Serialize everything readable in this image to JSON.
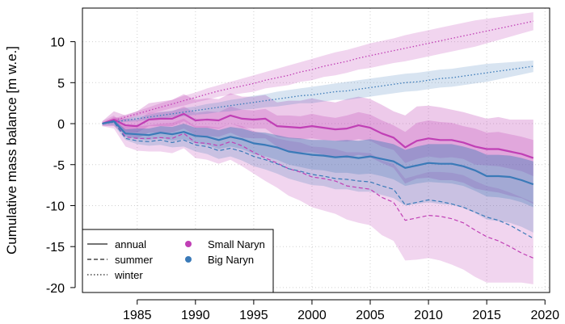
{
  "chart_data": {
    "type": "line",
    "title": "",
    "xlabel": "",
    "ylabel": "Cumulative mass balance [m w.e.]",
    "xlim": [
      1980.3,
      2020.4
    ],
    "ylim": [
      -20.6,
      14.1
    ],
    "xticks": [
      1985,
      1990,
      1995,
      2000,
      2005,
      2010,
      2015,
      2020
    ],
    "yticks": [
      -20,
      -15,
      -10,
      -5,
      0,
      5,
      10
    ],
    "x": [
      1982,
      1983,
      1984,
      1985,
      1986,
      1987,
      1988,
      1989,
      1990,
      1991,
      1992,
      1993,
      1994,
      1995,
      1996,
      1997,
      1998,
      1999,
      2000,
      2001,
      2002,
      2003,
      2004,
      2005,
      2006,
      2007,
      2008,
      2009,
      2010,
      2011,
      2012,
      2013,
      2014,
      2015,
      2016,
      2017,
      2018,
      2019
    ],
    "series": [
      {
        "name": "Small Naryn annual",
        "glacier": "Small Naryn",
        "season": "annual",
        "color": "#c03fb5",
        "values": [
          0.0,
          0.5,
          -0.2,
          -0.3,
          0.5,
          0.6,
          0.6,
          1.2,
          0.4,
          0.5,
          0.4,
          1.0,
          0.6,
          0.5,
          0.6,
          -0.3,
          -0.4,
          -0.5,
          -0.3,
          -0.5,
          -0.7,
          -0.6,
          -0.2,
          -0.5,
          -1.2,
          -1.7,
          -2.9,
          -2.1,
          -1.8,
          -2.0,
          -2.0,
          -2.3,
          -2.8,
          -3.1,
          -3.1,
          -3.4,
          -3.7,
          -4.2
        ],
        "band_outer": [
          0.3,
          1.5,
          1.0,
          1.5,
          2.5,
          2.7,
          2.9,
          3.6,
          2.9,
          3.1,
          3.0,
          3.7,
          3.3,
          3.3,
          3.5,
          2.6,
          2.8,
          2.8,
          3.1,
          2.8,
          2.6,
          3.0,
          3.3,
          3.0,
          2.3,
          1.5,
          1.0,
          2.1,
          2.2,
          2.0,
          1.7,
          1.4,
          1.0,
          0.6,
          0.8,
          0.5,
          0.5,
          0.5
        ],
        "band_inner": [
          0.1,
          0.8,
          0.6,
          0.5,
          1.3,
          1.4,
          1.5,
          2.1,
          1.3,
          1.5,
          1.4,
          2.1,
          1.7,
          1.6,
          1.8,
          1.0,
          1.0,
          0.9,
          1.2,
          0.9,
          0.7,
          1.0,
          1.4,
          1.1,
          0.4,
          -0.2,
          -1.0,
          0.1,
          0.4,
          0.2,
          0.1,
          -0.3,
          -0.6,
          -1.1,
          -1.0,
          -1.3,
          -1.6,
          -2.0
        ],
        "band_inner_low": [
          -0.1,
          0.2,
          -1.0,
          -1.1,
          -0.3,
          -0.3,
          -0.3,
          0.3,
          -0.5,
          -0.5,
          -0.6,
          0.0,
          -0.5,
          -0.6,
          -0.6,
          -1.6,
          -1.8,
          -1.9,
          -1.8,
          -2.0,
          -2.1,
          -2.2,
          -1.9,
          -2.1,
          -2.8,
          -3.2,
          -4.8,
          -4.3,
          -4.0,
          -4.2,
          -4.1,
          -4.3,
          -5.0,
          -5.1,
          -5.2,
          -5.5,
          -5.8,
          -6.4
        ],
        "band_outer_low": [
          -0.3,
          -0.3,
          -1.4,
          -1.8,
          -1.1,
          -1.1,
          -1.1,
          -0.6,
          -1.4,
          -1.5,
          -1.6,
          -1.1,
          -1.7,
          -1.8,
          -1.8,
          -2.8,
          -3.3,
          -3.5,
          -3.5,
          -3.8,
          -4.0,
          -4.2,
          -3.8,
          -4.1,
          -4.8,
          -5.4,
          -7.3,
          -6.7,
          -6.6,
          -6.9,
          -6.9,
          -7.2,
          -7.9,
          -8.2,
          -8.4,
          -8.8,
          -9.1,
          -9.8
        ]
      },
      {
        "name": "Small Naryn summer",
        "glacier": "Small Naryn",
        "season": "summer",
        "color": "#c03fb5",
        "values": [
          0.0,
          0.2,
          -1.6,
          -1.8,
          -1.8,
          -1.7,
          -1.8,
          -1.2,
          -2.3,
          -2.4,
          -2.7,
          -2.2,
          -2.7,
          -3.5,
          -4.2,
          -4.8,
          -5.5,
          -5.9,
          -6.5,
          -6.7,
          -7.0,
          -7.6,
          -7.8,
          -8.0,
          -9.0,
          -9.6,
          -11.8,
          -11.5,
          -11.2,
          -11.3,
          -11.6,
          -12.1,
          -13.0,
          -13.8,
          -14.3,
          -15.0,
          -15.8,
          -16.4
        ],
        "band_outer": [
          0.3,
          1.0,
          -0.4,
          -0.3,
          -0.2,
          0.0,
          0.1,
          0.6,
          -0.3,
          -0.3,
          -0.5,
          0.0,
          -0.3,
          -0.9,
          -1.3,
          -1.8,
          -2.1,
          -2.3,
          -2.8,
          -2.9,
          -3.1,
          -3.5,
          -3.5,
          -3.6,
          -4.5,
          -4.9,
          -6.7,
          -6.3,
          -5.9,
          -5.9,
          -6.0,
          -6.3,
          -7.0,
          -7.6,
          -7.9,
          -8.4,
          -9.0,
          -9.6
        ],
        "band_outer_low": [
          -0.3,
          -0.6,
          -2.8,
          -3.3,
          -3.4,
          -3.4,
          -3.6,
          -3.0,
          -4.2,
          -4.4,
          -4.9,
          -4.4,
          -5.2,
          -6.1,
          -7.0,
          -7.8,
          -8.8,
          -9.4,
          -10.2,
          -10.6,
          -11.0,
          -11.7,
          -12.1,
          -12.4,
          -13.6,
          -14.3,
          -16.7,
          -16.6,
          -16.4,
          -16.7,
          -17.2,
          -17.8,
          -18.7,
          -19.4,
          -19.4,
          -19.4,
          -19.4,
          -19.6
        ]
      },
      {
        "name": "Small Naryn winter",
        "glacier": "Small Naryn",
        "season": "winter",
        "color": "#c03fb5",
        "values": [
          0.0,
          0.4,
          0.8,
          1.2,
          1.6,
          2.0,
          2.4,
          2.8,
          3.2,
          3.6,
          4.0,
          4.3,
          4.6,
          4.9,
          5.3,
          5.6,
          5.9,
          6.3,
          6.6,
          7.0,
          7.3,
          7.6,
          8.0,
          8.3,
          8.6,
          8.9,
          9.2,
          9.5,
          9.8,
          10.1,
          10.4,
          10.7,
          11.0,
          11.3,
          11.6,
          11.9,
          12.2,
          12.5
        ],
        "band_outer": [
          0.1,
          0.6,
          1.1,
          1.5,
          2.0,
          2.5,
          2.9,
          3.4,
          3.8,
          4.3,
          4.7,
          5.1,
          5.5,
          5.9,
          6.3,
          6.7,
          7.1,
          7.5,
          7.9,
          8.3,
          8.7,
          9.0,
          9.4,
          9.8,
          10.1,
          10.4,
          10.8,
          11.1,
          11.4,
          11.7,
          12.0,
          12.3,
          12.6,
          12.8,
          13.0,
          13.2,
          13.4,
          13.6
        ],
        "band_outer_low": [
          -0.1,
          0.2,
          0.5,
          0.9,
          1.2,
          1.5,
          1.9,
          2.2,
          2.6,
          2.9,
          3.3,
          3.5,
          3.7,
          3.9,
          4.3,
          4.5,
          4.7,
          5.1,
          5.3,
          5.7,
          5.9,
          6.2,
          6.6,
          6.8,
          7.1,
          7.4,
          7.6,
          7.9,
          8.2,
          8.5,
          8.8,
          9.1,
          9.4,
          9.8,
          10.2,
          10.6,
          11.0,
          11.4
        ]
      },
      {
        "name": "Big Naryn annual",
        "glacier": "Big Naryn",
        "season": "annual",
        "color": "#3a7ab8",
        "values": [
          0.0,
          0.3,
          -1.2,
          -1.3,
          -1.4,
          -1.1,
          -1.3,
          -1.0,
          -1.5,
          -1.6,
          -2.0,
          -1.6,
          -1.9,
          -2.4,
          -2.6,
          -2.9,
          -3.4,
          -3.6,
          -3.8,
          -3.9,
          -4.1,
          -4.0,
          -4.2,
          -4.0,
          -4.3,
          -4.6,
          -5.4,
          -5.1,
          -4.8,
          -4.9,
          -4.9,
          -5.2,
          -5.7,
          -6.4,
          -6.4,
          -6.5,
          -6.9,
          -7.4
        ],
        "band_inner": [
          0.1,
          0.5,
          -0.7,
          -0.6,
          -0.6,
          -0.3,
          -0.4,
          0.0,
          -0.5,
          -0.5,
          -0.8,
          -0.4,
          -0.6,
          -1.0,
          -1.1,
          -1.4,
          -1.7,
          -1.8,
          -2.0,
          -2.0,
          -2.1,
          -2.0,
          -2.1,
          -1.9,
          -2.2,
          -2.5,
          -3.2,
          -2.8,
          -2.5,
          -2.5,
          -2.5,
          -2.8,
          -3.2,
          -3.8,
          -3.8,
          -3.9,
          -4.2,
          -4.6
        ],
        "band_inner_low": [
          -0.1,
          0.1,
          -1.6,
          -1.9,
          -2.0,
          -1.8,
          -2.1,
          -1.9,
          -2.4,
          -2.6,
          -3.1,
          -2.8,
          -3.1,
          -3.7,
          -4.0,
          -4.4,
          -5.0,
          -5.3,
          -5.6,
          -5.7,
          -6.0,
          -6.0,
          -6.2,
          -6.1,
          -6.4,
          -6.8,
          -7.6,
          -7.3,
          -7.1,
          -7.2,
          -7.3,
          -7.6,
          -8.2,
          -8.9,
          -9.0,
          -9.2,
          -9.6,
          -10.2
        ],
        "band_outer_low": [
          -0.2,
          -0.2,
          -2.0,
          -2.5,
          -2.7,
          -2.6,
          -2.9,
          -2.8,
          -3.4,
          -3.7,
          -4.3,
          -4.0,
          -4.5,
          -5.2,
          -5.6,
          -6.1,
          -6.7,
          -7.1,
          -7.5,
          -7.6,
          -8.0,
          -8.0,
          -8.3,
          -8.3,
          -8.7,
          -9.1,
          -10.0,
          -9.8,
          -9.6,
          -9.8,
          -9.9,
          -10.3,
          -10.9,
          -11.7,
          -11.9,
          -12.1,
          -12.6,
          -13.3
        ]
      },
      {
        "name": "Big Naryn summer",
        "glacier": "Big Naryn",
        "season": "summer",
        "color": "#3a7ab8",
        "values": [
          0.0,
          0.2,
          -1.8,
          -2.1,
          -2.2,
          -2.0,
          -2.3,
          -2.0,
          -2.6,
          -2.8,
          -3.3,
          -3.0,
          -3.4,
          -4.0,
          -4.4,
          -4.9,
          -5.5,
          -5.8,
          -6.2,
          -6.4,
          -6.7,
          -6.8,
          -7.0,
          -7.1,
          -7.6,
          -8.0,
          -9.9,
          -9.6,
          -9.3,
          -9.5,
          -9.8,
          -10.2,
          -10.8,
          -11.4,
          -11.8,
          -12.4,
          -13.2,
          -14.0
        ]
      },
      {
        "name": "Big Naryn winter",
        "glacier": "Big Naryn",
        "season": "winter",
        "color": "#3a7ab8",
        "values": [
          0.0,
          0.2,
          0.4,
          0.6,
          0.8,
          1.0,
          1.2,
          1.4,
          1.6,
          1.8,
          2.0,
          2.2,
          2.4,
          2.6,
          2.8,
          3.0,
          3.2,
          3.4,
          3.5,
          3.7,
          3.9,
          4.0,
          4.2,
          4.4,
          4.6,
          4.8,
          5.0,
          5.1,
          5.3,
          5.5,
          5.6,
          5.8,
          6.0,
          6.2,
          6.4,
          6.6,
          6.8,
          7.0
        ],
        "band_outer": [
          0.1,
          0.3,
          0.6,
          0.9,
          1.1,
          1.4,
          1.6,
          1.9,
          2.1,
          2.4,
          2.6,
          2.9,
          3.1,
          3.4,
          3.6,
          3.9,
          4.1,
          4.3,
          4.5,
          4.7,
          4.9,
          5.1,
          5.3,
          5.5,
          5.7,
          5.9,
          6.1,
          6.2,
          6.4,
          6.6,
          6.7,
          6.9,
          7.1,
          7.3,
          7.4,
          7.5,
          7.6,
          7.7
        ],
        "band_outer_low": [
          -0.1,
          0.1,
          0.2,
          0.3,
          0.5,
          0.6,
          0.8,
          0.9,
          1.1,
          1.2,
          1.4,
          1.5,
          1.7,
          1.8,
          2.0,
          2.1,
          2.3,
          2.5,
          2.5,
          2.7,
          2.9,
          2.9,
          3.1,
          3.3,
          3.5,
          3.7,
          3.9,
          4.0,
          4.2,
          4.4,
          4.5,
          4.7,
          4.9,
          5.1,
          5.4,
          5.7,
          6.0,
          6.3
        ]
      }
    ],
    "legend": {
      "placement": "bottom-left",
      "linestyles": [
        {
          "label": "annual",
          "style": "solid"
        },
        {
          "label": "summer",
          "style": "dashed"
        },
        {
          "label": "winter",
          "style": "dotted"
        }
      ],
      "glaciers": [
        {
          "label": "Small Naryn",
          "color": "#c03fb5"
        },
        {
          "label": "Big Naryn",
          "color": "#3a7ab8"
        }
      ]
    },
    "grid": true
  }
}
